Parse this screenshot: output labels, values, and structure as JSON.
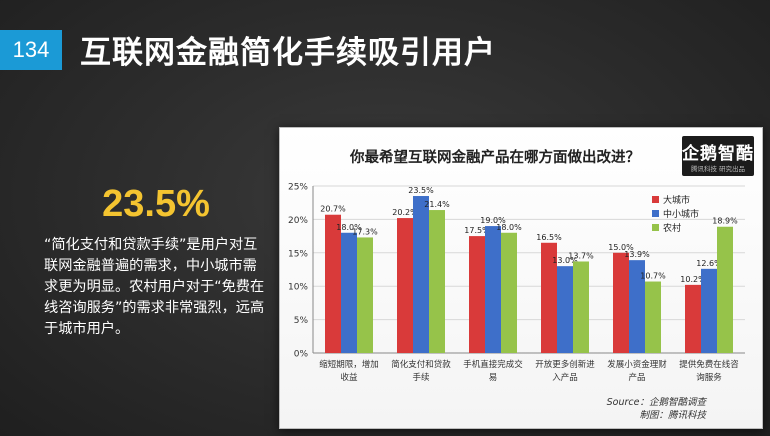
{
  "slide": {
    "number": "134",
    "title": "互联网金融简化手续吸引用户"
  },
  "highlight": {
    "value": "23.5%",
    "text": "“简化支付和贷款手续”是用户对互联网金融普遍的需求，中小城市需求更为明显。农村用户对于“免费在线咨询服务”的需求非常强烈，远高于城市用户。"
  },
  "logo": {
    "main": "企鹅智酷",
    "sub": "腾讯科技  研究出品"
  },
  "source": {
    "line1": "Source：企鹅智酷调查",
    "line2": "制图：腾讯科技"
  },
  "chart_data": {
    "type": "bar",
    "title": "你最希望互联网金融产品在哪方面做出改进？",
    "categories": [
      [
        "缩短期限，增加",
        "收益"
      ],
      [
        "简化支付和贷款",
        "手续"
      ],
      [
        "手机直接完成交",
        "易"
      ],
      [
        "开放更多创新进",
        "入产品"
      ],
      [
        "发展小资金理财",
        "产品"
      ],
      [
        "提供免费在线咨",
        "询服务"
      ]
    ],
    "series": [
      {
        "name": "大城市",
        "color": "#d93a3a",
        "values": [
          20.7,
          20.2,
          17.5,
          16.5,
          15.0,
          10.2
        ]
      },
      {
        "name": "中小城市",
        "color": "#3e6fc9",
        "values": [
          18.0,
          23.5,
          19.0,
          13.0,
          13.9,
          12.6
        ]
      },
      {
        "name": "农村",
        "color": "#96c34a",
        "values": [
          17.3,
          21.4,
          18.0,
          13.7,
          10.7,
          18.9
        ]
      }
    ],
    "yticks": [
      "0%",
      "5%",
      "10%",
      "15%",
      "20%",
      "25%"
    ],
    "ylim": [
      0,
      25
    ],
    "grid": true,
    "legend": "right"
  }
}
